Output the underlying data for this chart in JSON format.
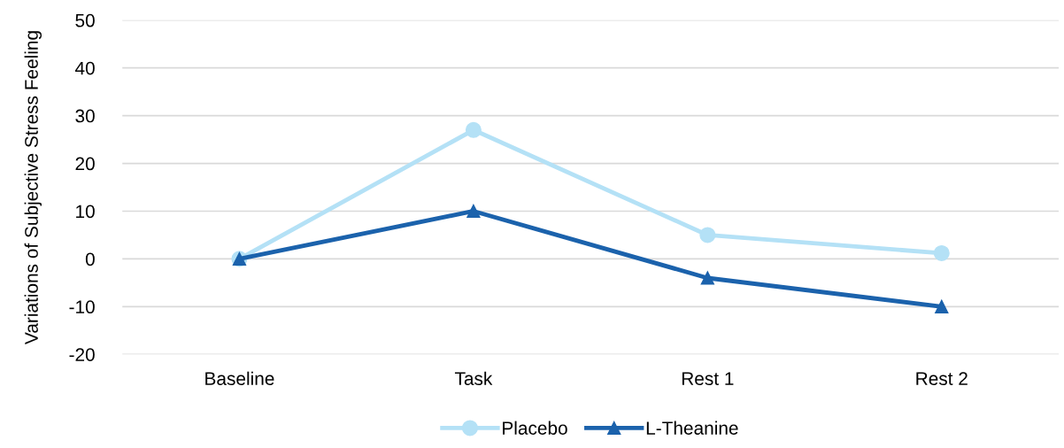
{
  "chart_data": {
    "type": "line",
    "ylabel": "Variations of Subjective Stress Feeling",
    "categories": [
      "Baseline",
      "Task",
      "Rest 1",
      "Rest 2"
    ],
    "series": [
      {
        "name": "Placebo",
        "color": "#b4e1f6",
        "values": [
          0,
          27,
          5,
          1.2
        ],
        "marker": "circle"
      },
      {
        "name": "L-Theanine",
        "color": "#1b62ac",
        "values": [
          0,
          10,
          -4,
          -10
        ],
        "marker": "triangle"
      }
    ],
    "ylim": [
      -20,
      50
    ],
    "yticks": [
      -20,
      -10,
      0,
      10,
      20,
      30,
      40,
      50
    ],
    "grid": "y",
    "legend": "bottom",
    "line_style": "solid"
  }
}
